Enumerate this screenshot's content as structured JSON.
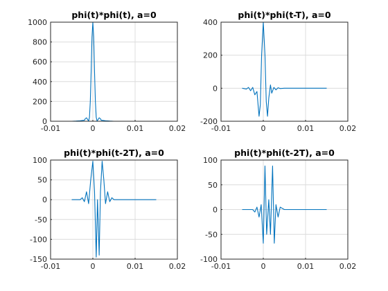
{
  "chart_data": [
    {
      "type": "line",
      "title": "phi(t)*phi(t), a=0",
      "xlim": [
        -0.01,
        0.02
      ],
      "ylim": [
        0,
        1000
      ],
      "xticks": [
        -0.01,
        0,
        0.01,
        0.02
      ],
      "xtick_labels": [
        "-0.01",
        "0",
        "0.01",
        "0.02"
      ],
      "yticks": [
        0,
        200,
        400,
        600,
        800,
        1000
      ],
      "ytick_labels": [
        "0",
        "200",
        "400",
        "600",
        "800",
        "1000"
      ],
      "grid": true,
      "series": [
        {
          "color": "#0072bd",
          "x": [
            -0.005,
            -0.004,
            -0.003,
            -0.0025,
            -0.002,
            -0.0018,
            -0.0015,
            -0.0012,
            -0.001,
            -0.0008,
            -0.0006,
            -0.0004,
            -0.0002,
            0,
            0.0002,
            0.0004,
            0.0006,
            0.0008,
            0.001,
            0.0012,
            0.0015,
            0.0018,
            0.002,
            0.0025,
            0.003,
            0.004,
            0.005,
            0.015
          ],
          "y": [
            0,
            2,
            5,
            8,
            10,
            25,
            35,
            15,
            2,
            40,
            200,
            500,
            850,
            1000,
            850,
            500,
            200,
            40,
            2,
            15,
            35,
            25,
            10,
            8,
            5,
            2,
            0,
            0
          ]
        }
      ]
    },
    {
      "type": "line",
      "title": "phi(t)*phi(t-T), a=0",
      "xlim": [
        -0.01,
        0.02
      ],
      "ylim": [
        -200,
        400
      ],
      "xticks": [
        -0.01,
        0,
        0.01,
        0.02
      ],
      "xtick_labels": [
        "-0.01",
        "0",
        "0.01",
        "0.02"
      ],
      "yticks": [
        -200,
        0,
        200,
        400
      ],
      "ytick_labels": [
        "-200",
        "0",
        "200",
        "400"
      ],
      "grid": true,
      "series": [
        {
          "color": "#0072bd",
          "x": [
            -0.005,
            -0.004,
            -0.0035,
            -0.003,
            -0.0025,
            -0.002,
            -0.0015,
            -0.001,
            -0.0007,
            -0.0004,
            0,
            0.0004,
            0.0007,
            0.001,
            0.0013,
            0.0017,
            0.002,
            0.0025,
            0.003,
            0.0035,
            0.004,
            0.005,
            0.015
          ],
          "y": [
            0,
            -5,
            5,
            -15,
            5,
            -40,
            -20,
            -170,
            -100,
            200,
            400,
            200,
            -80,
            -170,
            -60,
            20,
            -30,
            5,
            -10,
            3,
            -2,
            0,
            0
          ]
        }
      ]
    },
    {
      "type": "line",
      "title": "phi(t)*phi(t-2T), a=0",
      "xlim": [
        -0.01,
        0.02
      ],
      "ylim": [
        -150,
        100
      ],
      "xticks": [
        -0.01,
        0,
        0.01,
        0.02
      ],
      "xtick_labels": [
        "-0.01",
        "0",
        "0.01",
        "0.02"
      ],
      "yticks": [
        -150,
        -100,
        -50,
        0,
        50,
        100
      ],
      "ytick_labels": [
        "-150",
        "-100",
        "-50",
        "0",
        "50",
        "100"
      ],
      "grid": true,
      "series": [
        {
          "color": "#0072bd",
          "x": [
            -0.005,
            -0.003,
            -0.0025,
            -0.002,
            -0.0015,
            -0.001,
            -0.0005,
            0,
            0.0004,
            0.0008,
            0.0011,
            0.0015,
            0.0018,
            0.0022,
            0.0026,
            0.003,
            0.0035,
            0.004,
            0.0045,
            0.005,
            0.015
          ],
          "y": [
            0,
            0,
            5,
            -5,
            20,
            -10,
            50,
            97,
            20,
            -145,
            0,
            -140,
            20,
            97,
            50,
            -10,
            20,
            -5,
            5,
            0,
            0
          ]
        }
      ]
    },
    {
      "type": "line",
      "title": "phi(t)*phi(t-2T), a=0",
      "xlim": [
        -0.01,
        0.02
      ],
      "ylim": [
        -100,
        100
      ],
      "xticks": [
        -0.01,
        0,
        0.01,
        0.02
      ],
      "xtick_labels": [
        "-0.01",
        "0",
        "0.01",
        "0.02"
      ],
      "yticks": [
        -100,
        -50,
        0,
        50,
        100
      ],
      "ytick_labels": [
        "-100",
        "-50",
        "0",
        "50",
        "100"
      ],
      "grid": true,
      "series": [
        {
          "color": "#0072bd",
          "x": [
            -0.005,
            -0.0025,
            -0.002,
            -0.0015,
            -0.001,
            -0.0005,
            0,
            0.0004,
            0.0008,
            0.0013,
            0.0017,
            0.0022,
            0.0026,
            0.003,
            0.0035,
            0.004,
            0.005,
            0.015
          ],
          "y": [
            0,
            0,
            -5,
            5,
            -15,
            10,
            -68,
            88,
            -50,
            20,
            -50,
            88,
            -68,
            10,
            -15,
            5,
            0,
            0
          ]
        }
      ]
    }
  ]
}
